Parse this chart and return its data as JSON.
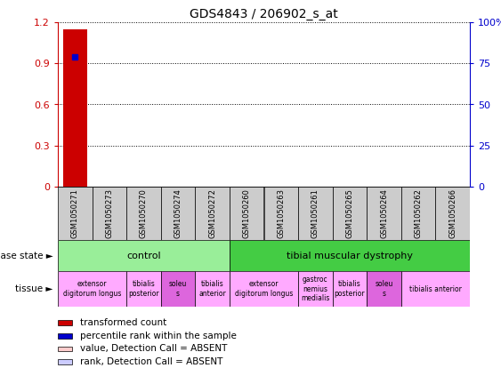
{
  "title": "GDS4843 / 206902_s_at",
  "samples": [
    "GSM1050271",
    "GSM1050273",
    "GSM1050270",
    "GSM1050274",
    "GSM1050272",
    "GSM1050260",
    "GSM1050263",
    "GSM1050261",
    "GSM1050265",
    "GSM1050264",
    "GSM1050262",
    "GSM1050266"
  ],
  "bar_values": [
    1.15,
    0,
    0,
    0,
    0,
    0,
    0,
    0,
    0,
    0,
    0,
    0
  ],
  "dot_values": [
    0.95,
    0,
    0,
    0,
    0,
    0,
    0,
    0,
    0,
    0,
    0,
    0
  ],
  "ylim_left": [
    0,
    1.2
  ],
  "ylim_right": [
    0,
    100
  ],
  "yticks_left": [
    0,
    0.3,
    0.6,
    0.9,
    1.2
  ],
  "yticks_right": [
    0,
    25,
    50,
    75,
    100
  ],
  "ytick_labels_left": [
    "0",
    "0.3",
    "0.6",
    "0.9",
    "1.2"
  ],
  "ytick_labels_right": [
    "0",
    "25",
    "50",
    "75",
    "100%"
  ],
  "left_axis_color": "#cc0000",
  "right_axis_color": "#0000cc",
  "bar_color": "#cc0000",
  "dot_color": "#0000cc",
  "disease_state_groups": [
    {
      "label": "control",
      "start": 0,
      "end": 5,
      "color": "#99ee99"
    },
    {
      "label": "tibial muscular dystrophy",
      "start": 5,
      "end": 12,
      "color": "#44cc44"
    }
  ],
  "tissue_groups": [
    {
      "label": "extensor\ndigitorum longus",
      "start": 0,
      "end": 2,
      "color": "#ffaaff"
    },
    {
      "label": "tibialis\nposterior",
      "start": 2,
      "end": 3,
      "color": "#ffaaff"
    },
    {
      "label": "soleu\ns",
      "start": 3,
      "end": 4,
      "color": "#dd66dd"
    },
    {
      "label": "tibialis\nanterior",
      "start": 4,
      "end": 5,
      "color": "#ffaaff"
    },
    {
      "label": "extensor\ndigitorum longus",
      "start": 5,
      "end": 7,
      "color": "#ffaaff"
    },
    {
      "label": "gastroc\nnemius\nmedialis",
      "start": 7,
      "end": 8,
      "color": "#ffaaff"
    },
    {
      "label": "tibialis\nposterior",
      "start": 8,
      "end": 9,
      "color": "#ffaaff"
    },
    {
      "label": "soleu\ns",
      "start": 9,
      "end": 10,
      "color": "#dd66dd"
    },
    {
      "label": "tibialis anterior",
      "start": 10,
      "end": 12,
      "color": "#ffaaff"
    }
  ],
  "legend_items": [
    {
      "color": "#cc0000",
      "label": "transformed count"
    },
    {
      "color": "#0000cc",
      "label": "percentile rank within the sample"
    },
    {
      "color": "#ffcccc",
      "label": "value, Detection Call = ABSENT"
    },
    {
      "color": "#ccccff",
      "label": "rank, Detection Call = ABSENT"
    }
  ],
  "bg_color": "#ffffff",
  "grid_color": "#aaaaaa",
  "sample_bg_color": "#cccccc"
}
